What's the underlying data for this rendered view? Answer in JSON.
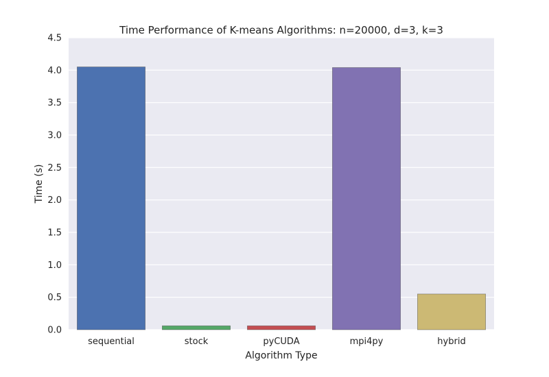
{
  "chart_data": {
    "type": "bar",
    "title": "Time Performance of K-means Algorithms: n=20000, d=3, k=3",
    "xlabel": "Algorithm Type",
    "ylabel": "Time (s)",
    "categories": [
      "sequential",
      "stock",
      "pyCUDA",
      "mpi4py",
      "hybrid"
    ],
    "values": [
      4.05,
      0.06,
      0.06,
      4.04,
      0.55
    ],
    "colors": [
      "#4c72b0",
      "#55a868",
      "#c44e52",
      "#8172b2",
      "#ccb974"
    ],
    "ylim": [
      0,
      4.5
    ],
    "yticks": [
      "0.0",
      "0.5",
      "1.0",
      "1.5",
      "2.0",
      "2.5",
      "3.0",
      "3.5",
      "4.0",
      "4.5"
    ],
    "grid": true,
    "background": "#eaeaf2"
  }
}
